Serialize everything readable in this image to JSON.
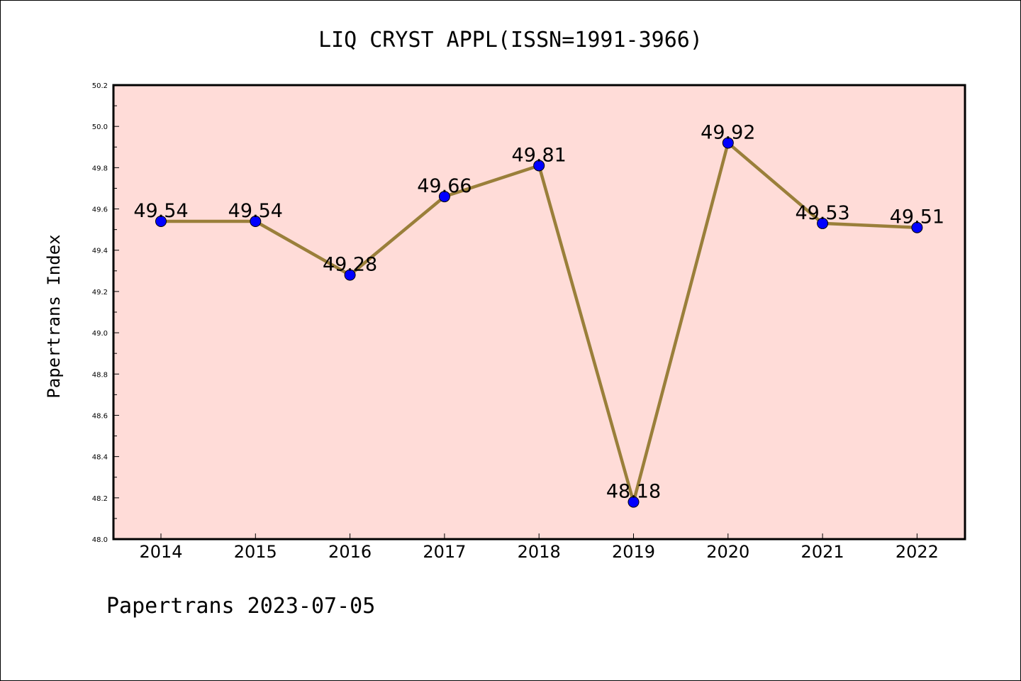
{
  "chart_data": {
    "type": "line",
    "title": "LIQ CRYST APPL(ISSN=1991-3966)",
    "ylabel": "Papertrans Index",
    "xlabel": "",
    "footer": "Papertrans 2023-07-05",
    "categories": [
      "2014",
      "2015",
      "2016",
      "2017",
      "2018",
      "2019",
      "2020",
      "2021",
      "2022"
    ],
    "values": [
      49.54,
      49.54,
      49.28,
      49.66,
      49.81,
      48.18,
      49.92,
      49.53,
      49.51
    ],
    "data_labels": [
      "49.54",
      "49.54",
      "49.28",
      "49.66",
      "49.81",
      "48.18",
      "49.92",
      "49.53",
      "49.51"
    ],
    "ylim": [
      48.0,
      50.2
    ],
    "yticks": [
      "48.0",
      "48.2",
      "48.4",
      "48.6",
      "48.8",
      "49.0",
      "49.2",
      "49.4",
      "49.6",
      "49.8",
      "50.0",
      "50.2"
    ],
    "grid": false,
    "colors": {
      "plot_background": "#ffdcd8",
      "line": "#9a7f3a",
      "marker": "#0000ff"
    }
  }
}
